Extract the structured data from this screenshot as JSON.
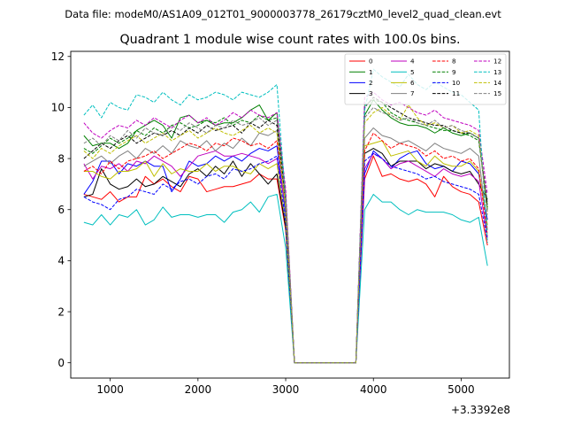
{
  "chart_data": {
    "type": "line",
    "suptitle": "Data file: modeM0/AS1A09_012T01_9000003778_26179cztM0_level2_quad_clean.evt",
    "title": "Quadrant 1 module wise count rates with 100.0s bins.",
    "xlabel": "",
    "ylabel": "",
    "x_offset_label": "+3.3392e8",
    "xlim": [
      550,
      5550
    ],
    "ylim": [
      -0.6,
      12.2
    ],
    "x_ticks": [
      1000,
      2000,
      3000,
      4000,
      5000
    ],
    "y_ticks": [
      0,
      2,
      4,
      6,
      8,
      10,
      12
    ],
    "x_tick_labels": [
      "1000",
      "2000",
      "3000",
      "4000",
      "5000"
    ],
    "y_tick_labels": [
      "0",
      "2",
      "4",
      "6",
      "8",
      "10",
      "12"
    ],
    "legend_position": "top-right",
    "x": [
      700,
      800,
      900,
      1000,
      1100,
      1200,
      1300,
      1400,
      1500,
      1600,
      1700,
      1800,
      1900,
      2000,
      2100,
      2200,
      2300,
      2400,
      2500,
      2600,
      2700,
      2800,
      2900,
      3000,
      3100,
      3200,
      3300,
      3400,
      3500,
      3600,
      3700,
      3800,
      3900,
      4000,
      4100,
      4200,
      4300,
      4400,
      4500,
      4600,
      4700,
      4800,
      4900,
      5000,
      5100,
      5200,
      5300
    ],
    "series": [
      {
        "name": "0",
        "color": "#ff0000",
        "dash": "solid",
        "values": [
          6.6,
          6.5,
          6.4,
          6.7,
          6.3,
          6.5,
          6.5,
          7.3,
          7.0,
          7.2,
          6.9,
          6.7,
          7.3,
          7.2,
          6.7,
          6.8,
          6.9,
          6.9,
          7.0,
          7.1,
          7.4,
          7.2,
          7.2,
          5.2,
          0,
          0,
          0,
          0,
          0,
          0,
          0,
          0,
          7.2,
          8.1,
          7.3,
          7.4,
          7.2,
          7.1,
          7.2,
          7.0,
          6.5,
          7.3,
          6.9,
          6.7,
          6.6,
          6.3,
          4.6
        ]
      },
      {
        "name": "1",
        "color": "#008000",
        "dash": "solid",
        "values": [
          8.9,
          8.5,
          8.6,
          8.6,
          8.4,
          8.6,
          9.1,
          9.3,
          9.5,
          9.3,
          8.8,
          9.6,
          9.7,
          9.4,
          9.5,
          9.3,
          9.4,
          9.4,
          9.6,
          9.9,
          10.1,
          9.5,
          9.8,
          6.4,
          0,
          0,
          0,
          0,
          0,
          0,
          0,
          0,
          9.7,
          10.3,
          9.9,
          9.6,
          9.4,
          9.3,
          9.3,
          9.2,
          9.0,
          9.2,
          9.0,
          8.9,
          9.0,
          8.8,
          6.0
        ]
      },
      {
        "name": "2",
        "color": "#0000ff",
        "dash": "solid",
        "values": [
          6.6,
          7.1,
          7.9,
          7.9,
          7.4,
          7.8,
          7.7,
          7.9,
          7.7,
          7.7,
          6.7,
          7.2,
          7.9,
          7.7,
          7.8,
          8.1,
          7.9,
          8.1,
          7.9,
          8.2,
          8.4,
          8.3,
          8.5,
          5.8,
          0,
          0,
          0,
          0,
          0,
          0,
          0,
          0,
          7.4,
          8.3,
          8.0,
          7.6,
          8.0,
          8.2,
          8.3,
          7.8,
          7.6,
          7.7,
          7.5,
          7.9,
          7.8,
          7.4,
          5.6
        ]
      },
      {
        "name": "3",
        "color": "#000000",
        "dash": "solid",
        "values": [
          6.5,
          6.6,
          7.6,
          7.0,
          6.8,
          6.9,
          7.2,
          6.9,
          7.0,
          7.3,
          7.1,
          6.9,
          7.4,
          7.6,
          7.3,
          7.7,
          7.4,
          7.9,
          7.3,
          7.8,
          7.4,
          7.0,
          7.4,
          5.3,
          0,
          0,
          0,
          0,
          0,
          0,
          0,
          0,
          8.2,
          8.4,
          8.2,
          7.7,
          7.9,
          7.9,
          7.9,
          7.6,
          7.8,
          7.7,
          7.5,
          7.4,
          7.5,
          7.0,
          6.4
        ]
      },
      {
        "name": "4",
        "color": "#bf00bf",
        "dash": "solid",
        "values": [
          7.8,
          7.2,
          7.7,
          7.6,
          7.8,
          7.5,
          7.9,
          7.8,
          8.1,
          7.9,
          7.7,
          7.3,
          7.7,
          8.1,
          8.2,
          8.3,
          8.1,
          8.1,
          8.2,
          8.1,
          8.0,
          7.8,
          8.0,
          6.1,
          0,
          0,
          0,
          0,
          0,
          0,
          0,
          0,
          7.6,
          8.2,
          8.0,
          7.6,
          7.8,
          7.9,
          7.7,
          7.5,
          7.3,
          7.6,
          7.4,
          7.3,
          7.4,
          7.1,
          4.9
        ]
      },
      {
        "name": "5",
        "color": "#00bfbf",
        "dash": "solid",
        "values": [
          5.5,
          5.4,
          5.8,
          5.4,
          5.8,
          5.7,
          6.0,
          5.4,
          5.6,
          6.1,
          5.7,
          5.8,
          5.8,
          5.7,
          5.8,
          5.8,
          5.5,
          5.9,
          6.0,
          6.3,
          5.9,
          6.5,
          6.6,
          4.5,
          0,
          0,
          0,
          0,
          0,
          0,
          0,
          0,
          6.0,
          6.6,
          6.3,
          6.3,
          6.0,
          5.8,
          6.0,
          5.9,
          5.9,
          5.9,
          5.8,
          5.6,
          5.5,
          5.7,
          3.8
        ]
      },
      {
        "name": "6",
        "color": "#bfbf00",
        "dash": "solid",
        "values": [
          7.5,
          7.5,
          7.3,
          7.2,
          7.5,
          7.5,
          7.6,
          7.9,
          7.3,
          7.8,
          7.4,
          7.6,
          7.5,
          7.5,
          7.8,
          7.5,
          7.7,
          7.7,
          7.5,
          7.4,
          7.8,
          7.6,
          7.8,
          5.5,
          0,
          0,
          0,
          0,
          0,
          0,
          0,
          0,
          8.5,
          8.6,
          8.7,
          8.1,
          8.2,
          8.3,
          7.9,
          7.7,
          8.1,
          7.8,
          7.7,
          7.7,
          7.9,
          7.5,
          5.4
        ]
      },
      {
        "name": "7",
        "color": "#808080",
        "dash": "solid",
        "values": [
          7.7,
          7.9,
          8.1,
          7.8,
          8.1,
          8.3,
          8.0,
          8.4,
          8.2,
          8.5,
          8.2,
          8.7,
          8.5,
          8.4,
          8.7,
          8.3,
          8.6,
          8.4,
          8.8,
          8.5,
          9.0,
          8.9,
          9.1,
          6.0,
          0,
          0,
          0,
          0,
          0,
          0,
          0,
          0,
          8.8,
          9.2,
          8.9,
          8.8,
          8.6,
          8.7,
          8.5,
          8.3,
          8.6,
          8.4,
          8.3,
          8.2,
          8.4,
          8.1,
          5.2
        ]
      },
      {
        "name": "8",
        "color": "#ff0000",
        "dash": "dashed",
        "values": [
          7.5,
          7.7,
          7.4,
          7.9,
          7.6,
          7.9,
          8.0,
          8.1,
          8.3,
          8.0,
          8.2,
          8.4,
          8.6,
          8.5,
          8.3,
          8.6,
          8.5,
          8.8,
          8.7,
          8.5,
          8.6,
          8.4,
          8.7,
          6.2,
          0,
          0,
          0,
          0,
          0,
          0,
          0,
          0,
          8.3,
          9.0,
          8.7,
          8.4,
          8.6,
          8.5,
          8.4,
          8.1,
          8.3,
          8.0,
          8.1,
          7.9,
          8.0,
          7.6,
          5.0
        ]
      },
      {
        "name": "9",
        "color": "#008000",
        "dash": "dashed",
        "values": [
          8.4,
          8.2,
          8.5,
          8.8,
          8.6,
          8.8,
          9.1,
          8.9,
          9.2,
          9.0,
          9.3,
          9.4,
          9.2,
          9.3,
          9.5,
          9.4,
          9.6,
          9.3,
          9.5,
          9.4,
          9.7,
          9.5,
          9.6,
          6.6,
          0,
          0,
          0,
          0,
          0,
          0,
          0,
          0,
          10.1,
          10.3,
          10.2,
          9.8,
          9.6,
          9.5,
          9.4,
          9.3,
          9.2,
          9.1,
          9.1,
          9.0,
          8.9,
          8.7,
          6.1
        ]
      },
      {
        "name": "10",
        "color": "#0000ff",
        "dash": "dashed",
        "values": [
          6.5,
          6.3,
          6.2,
          6.0,
          6.4,
          6.5,
          6.8,
          6.7,
          6.6,
          7.0,
          6.8,
          7.1,
          7.2,
          7.0,
          7.3,
          7.4,
          7.2,
          7.6,
          7.5,
          7.6,
          7.8,
          7.9,
          8.1,
          5.5,
          0,
          0,
          0,
          0,
          0,
          0,
          0,
          0,
          7.9,
          8.2,
          8.0,
          7.7,
          7.6,
          7.5,
          7.4,
          7.2,
          7.3,
          7.1,
          7.0,
          6.9,
          6.8,
          6.6,
          4.8
        ]
      },
      {
        "name": "11",
        "color": "#000000",
        "dash": "dashed",
        "values": [
          8.0,
          8.3,
          8.6,
          8.4,
          8.7,
          8.9,
          8.6,
          8.8,
          9.0,
          8.9,
          9.1,
          8.9,
          9.2,
          9.0,
          9.3,
          9.1,
          9.2,
          9.3,
          9.0,
          9.4,
          9.2,
          9.5,
          9.3,
          6.3,
          0,
          0,
          0,
          0,
          0,
          0,
          0,
          0,
          10.0,
          10.4,
          10.2,
          10.0,
          9.8,
          9.6,
          9.5,
          9.4,
          9.3,
          9.3,
          9.1,
          9.0,
          9.0,
          8.8,
          6.2
        ]
      },
      {
        "name": "12",
        "color": "#bf00bf",
        "dash": "dashed",
        "values": [
          9.4,
          9.0,
          8.8,
          9.1,
          9.3,
          9.2,
          9.5,
          9.3,
          9.6,
          9.4,
          9.2,
          9.5,
          9.7,
          9.4,
          9.6,
          9.3,
          9.5,
          9.8,
          9.6,
          9.9,
          9.7,
          9.6,
          9.8,
          6.8,
          0,
          0,
          0,
          0,
          0,
          0,
          0,
          0,
          10.4,
          10.6,
          10.3,
          10.1,
          10.2,
          10.0,
          9.8,
          9.7,
          9.9,
          9.6,
          9.5,
          9.4,
          9.3,
          9.1,
          6.6
        ]
      },
      {
        "name": "13",
        "color": "#00bfbf",
        "dash": "dashed",
        "values": [
          9.7,
          10.1,
          9.6,
          10.2,
          10.0,
          9.9,
          10.5,
          10.4,
          10.2,
          10.6,
          10.3,
          10.1,
          10.5,
          10.3,
          10.4,
          10.6,
          10.5,
          10.3,
          10.6,
          10.5,
          10.4,
          10.6,
          10.9,
          6.3,
          0,
          0,
          0,
          0,
          0,
          0,
          0,
          0,
          9.9,
          11.5,
          11.2,
          11.0,
          10.8,
          11.3,
          10.9,
          10.7,
          11.0,
          10.8,
          10.6,
          10.5,
          10.2,
          9.9,
          4.7
        ]
      },
      {
        "name": "14",
        "color": "#bfbf00",
        "dash": "dashed",
        "values": [
          8.3,
          8.0,
          8.4,
          8.2,
          8.5,
          8.7,
          8.9,
          8.6,
          8.8,
          9.0,
          8.7,
          8.9,
          9.1,
          8.8,
          9.0,
          9.2,
          9.0,
          8.9,
          9.1,
          9.3,
          9.0,
          9.2,
          9.0,
          6.1,
          0,
          0,
          0,
          0,
          0,
          0,
          0,
          0,
          9.4,
          9.8,
          10.0,
          9.7,
          9.5,
          10.1,
          9.6,
          9.3,
          9.4,
          9.2,
          9.3,
          9.0,
          9.1,
          8.9,
          5.8
        ]
      },
      {
        "name": "15",
        "color": "#808080",
        "dash": "dashed",
        "values": [
          8.6,
          8.8,
          8.5,
          8.9,
          8.7,
          9.1,
          8.8,
          9.2,
          9.0,
          8.9,
          9.3,
          9.1,
          9.4,
          9.2,
          9.0,
          9.3,
          9.2,
          9.5,
          9.3,
          9.4,
          9.6,
          9.3,
          9.5,
          6.5,
          0,
          0,
          0,
          0,
          0,
          0,
          0,
          0,
          9.6,
          10.0,
          9.8,
          9.7,
          9.5,
          9.6,
          9.4,
          9.3,
          9.5,
          9.2,
          9.3,
          9.1,
          9.0,
          8.8,
          5.9
        ]
      }
    ]
  }
}
